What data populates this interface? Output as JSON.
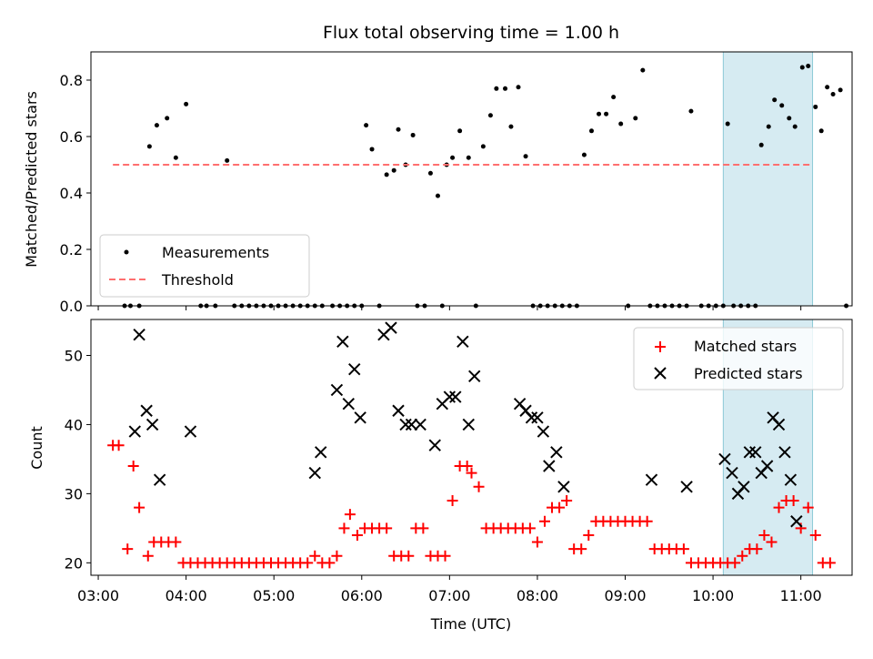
{
  "chart_data": [
    {
      "type": "scatter",
      "title": "Flux total observing time = 1.00 h",
      "xlabel": "",
      "ylabel": "Matched/Predicted stars",
      "xlim": [
        "02:55",
        "11:35"
      ],
      "ylim": [
        0,
        0.9
      ],
      "yticks": [
        "0.0",
        "0.2",
        "0.4",
        "0.6",
        "0.8"
      ],
      "grid": false,
      "legend_position": "lower-left",
      "highlight_span": {
        "x": [
          "10:07",
          "11:08"
        ],
        "color": "#add8e6"
      },
      "series": [
        {
          "name": "Measurements",
          "color": "#000000",
          "marker": "dot",
          "points": [
            [
              "03:18",
              0
            ],
            [
              "03:22",
              0
            ],
            [
              "03:28",
              0
            ],
            [
              "03:35",
              0.565
            ],
            [
              "03:40",
              0.64
            ],
            [
              "03:47",
              0.665
            ],
            [
              "03:53",
              0.525
            ],
            [
              "04:00",
              0.715
            ],
            [
              "04:10",
              0
            ],
            [
              "04:14",
              0
            ],
            [
              "04:20",
              0
            ],
            [
              "04:28",
              0.515
            ],
            [
              "04:33",
              0
            ],
            [
              "04:38",
              0
            ],
            [
              "04:43",
              0
            ],
            [
              "04:48",
              0
            ],
            [
              "04:53",
              0
            ],
            [
              "04:58",
              0
            ],
            [
              "05:03",
              0
            ],
            [
              "05:08",
              0
            ],
            [
              "05:13",
              0
            ],
            [
              "05:18",
              0
            ],
            [
              "05:23",
              0
            ],
            [
              "05:28",
              0
            ],
            [
              "05:33",
              0
            ],
            [
              "05:40",
              0
            ],
            [
              "05:45",
              0
            ],
            [
              "05:50",
              0
            ],
            [
              "05:55",
              0
            ],
            [
              "06:00",
              0
            ],
            [
              "06:03",
              0.64
            ],
            [
              "06:07",
              0.555
            ],
            [
              "06:12",
              0
            ],
            [
              "06:17",
              0.465
            ],
            [
              "06:22",
              0.48
            ],
            [
              "06:25",
              0.625
            ],
            [
              "06:30",
              0.5
            ],
            [
              "06:35",
              0.605
            ],
            [
              "06:38",
              0
            ],
            [
              "06:43",
              0
            ],
            [
              "06:47",
              0.47
            ],
            [
              "06:52",
              0.39
            ],
            [
              "06:55",
              0
            ],
            [
              "06:58",
              0.5
            ],
            [
              "07:02",
              0.525
            ],
            [
              "07:07",
              0.62
            ],
            [
              "07:13",
              0.525
            ],
            [
              "07:18",
              0
            ],
            [
              "07:23",
              0.565
            ],
            [
              "07:28",
              0.675
            ],
            [
              "07:32",
              0.77
            ],
            [
              "07:38",
              0.77
            ],
            [
              "07:42",
              0.635
            ],
            [
              "07:47",
              0.775
            ],
            [
              "07:52",
              0.53
            ],
            [
              "07:57",
              0
            ],
            [
              "08:02",
              0
            ],
            [
              "08:07",
              0
            ],
            [
              "08:12",
              0
            ],
            [
              "08:17",
              0
            ],
            [
              "08:22",
              0
            ],
            [
              "08:27",
              0
            ],
            [
              "08:32",
              0.535
            ],
            [
              "08:37",
              0.62
            ],
            [
              "08:42",
              0.68
            ],
            [
              "08:47",
              0.68
            ],
            [
              "08:52",
              0.74
            ],
            [
              "08:57",
              0.645
            ],
            [
              "09:02",
              0
            ],
            [
              "09:07",
              0.665
            ],
            [
              "09:12",
              0.835
            ],
            [
              "09:17",
              0
            ],
            [
              "09:22",
              0
            ],
            [
              "09:27",
              0
            ],
            [
              "09:32",
              0
            ],
            [
              "09:37",
              0
            ],
            [
              "09:42",
              0
            ],
            [
              "09:45",
              0.69
            ],
            [
              "09:52",
              0
            ],
            [
              "09:57",
              0
            ],
            [
              "10:02",
              0
            ],
            [
              "10:07",
              0
            ],
            [
              "10:10",
              0.645
            ],
            [
              "10:14",
              0
            ],
            [
              "10:19",
              0
            ],
            [
              "10:24",
              0
            ],
            [
              "10:29",
              0
            ],
            [
              "10:33",
              0.57
            ],
            [
              "10:38",
              0.635
            ],
            [
              "10:42",
              0.73
            ],
            [
              "10:47",
              0.71
            ],
            [
              "10:52",
              0.665
            ],
            [
              "10:56",
              0.635
            ],
            [
              "11:01",
              0.845
            ],
            [
              "11:05",
              0.85
            ],
            [
              "11:10",
              0.705
            ],
            [
              "11:14",
              0.62
            ],
            [
              "11:18",
              0.775
            ],
            [
              "11:22",
              0.75
            ],
            [
              "11:27",
              0.765
            ],
            [
              "11:31",
              0
            ]
          ]
        },
        {
          "name": "Threshold",
          "color": "#ff6f6f",
          "style": "dashed",
          "points": [
            [
              "03:10",
              0.5
            ],
            [
              "11:08",
              0.5
            ]
          ]
        }
      ]
    },
    {
      "type": "scatter",
      "title": "",
      "xlabel": "Time (UTC)",
      "ylabel": "Count",
      "xlim": [
        "02:55",
        "11:35"
      ],
      "ylim": [
        18.2,
        55.2
      ],
      "yticks": [
        "20",
        "30",
        "40",
        "50"
      ],
      "xticks": [
        "03:00",
        "04:00",
        "05:00",
        "06:00",
        "07:00",
        "08:00",
        "09:00",
        "10:00",
        "11:00"
      ],
      "grid": false,
      "legend_position": "upper-right",
      "highlight_span": {
        "x": [
          "10:07",
          "11:08"
        ],
        "color": "#add8e6"
      },
      "series": [
        {
          "name": "Matched stars",
          "color": "#ff0000",
          "marker": "plus",
          "points": [
            [
              "03:10",
              37
            ],
            [
              "03:14",
              37
            ],
            [
              "03:20",
              22
            ],
            [
              "03:24",
              34
            ],
            [
              "03:28",
              28
            ],
            [
              "03:34",
              21
            ],
            [
              "03:38",
              23
            ],
            [
              "03:43",
              23
            ],
            [
              "03:48",
              23
            ],
            [
              "03:53",
              23
            ],
            [
              "03:58",
              20
            ],
            [
              "04:03",
              20
            ],
            [
              "04:08",
              20
            ],
            [
              "04:13",
              20
            ],
            [
              "04:18",
              20
            ],
            [
              "04:23",
              20
            ],
            [
              "04:28",
              20
            ],
            [
              "04:33",
              20
            ],
            [
              "04:38",
              20
            ],
            [
              "04:43",
              20
            ],
            [
              "04:48",
              20
            ],
            [
              "04:53",
              20
            ],
            [
              "04:58",
              20
            ],
            [
              "05:03",
              20
            ],
            [
              "05:08",
              20
            ],
            [
              "05:13",
              20
            ],
            [
              "05:18",
              20
            ],
            [
              "05:23",
              20
            ],
            [
              "05:28",
              21
            ],
            [
              "05:33",
              20
            ],
            [
              "05:38",
              20
            ],
            [
              "05:43",
              21
            ],
            [
              "05:48",
              25
            ],
            [
              "05:52",
              27
            ],
            [
              "05:57",
              24
            ],
            [
              "06:02",
              25
            ],
            [
              "06:07",
              25
            ],
            [
              "06:12",
              25
            ],
            [
              "06:17",
              25
            ],
            [
              "06:22",
              21
            ],
            [
              "06:27",
              21
            ],
            [
              "06:32",
              21
            ],
            [
              "06:37",
              25
            ],
            [
              "06:42",
              25
            ],
            [
              "06:47",
              21
            ],
            [
              "06:52",
              21
            ],
            [
              "06:57",
              21
            ],
            [
              "07:02",
              29
            ],
            [
              "07:07",
              34
            ],
            [
              "07:12",
              34
            ],
            [
              "07:15",
              33
            ],
            [
              "07:20",
              31
            ],
            [
              "07:25",
              25
            ],
            [
              "07:30",
              25
            ],
            [
              "07:35",
              25
            ],
            [
              "07:40",
              25
            ],
            [
              "07:45",
              25
            ],
            [
              "07:50",
              25
            ],
            [
              "07:55",
              25
            ],
            [
              "08:00",
              23
            ],
            [
              "08:05",
              26
            ],
            [
              "08:10",
              28
            ],
            [
              "08:15",
              28
            ],
            [
              "08:20",
              29
            ],
            [
              "08:25",
              22
            ],
            [
              "08:30",
              22
            ],
            [
              "08:35",
              24
            ],
            [
              "08:40",
              26
            ],
            [
              "08:45",
              26
            ],
            [
              "08:50",
              26
            ],
            [
              "08:55",
              26
            ],
            [
              "09:00",
              26
            ],
            [
              "09:05",
              26
            ],
            [
              "09:10",
              26
            ],
            [
              "09:15",
              26
            ],
            [
              "09:20",
              22
            ],
            [
              "09:25",
              22
            ],
            [
              "09:30",
              22
            ],
            [
              "09:35",
              22
            ],
            [
              "09:40",
              22
            ],
            [
              "09:45",
              20
            ],
            [
              "09:50",
              20
            ],
            [
              "09:55",
              20
            ],
            [
              "10:00",
              20
            ],
            [
              "10:05",
              20
            ],
            [
              "10:10",
              20
            ],
            [
              "10:15",
              20
            ],
            [
              "10:20",
              21
            ],
            [
              "10:25",
              22
            ],
            [
              "10:30",
              22
            ],
            [
              "10:35",
              24
            ],
            [
              "10:40",
              23
            ],
            [
              "10:45",
              28
            ],
            [
              "10:50",
              29
            ],
            [
              "10:55",
              29
            ],
            [
              "11:00",
              25
            ],
            [
              "11:05",
              28
            ],
            [
              "11:10",
              24
            ],
            [
              "11:15",
              20
            ],
            [
              "11:20",
              20
            ]
          ]
        },
        {
          "name": "Predicted stars",
          "color": "#000000",
          "marker": "x",
          "points": [
            [
              "03:25",
              39
            ],
            [
              "03:28",
              53
            ],
            [
              "03:33",
              42
            ],
            [
              "03:37",
              40
            ],
            [
              "03:42",
              32
            ],
            [
              "04:03",
              39
            ],
            [
              "05:28",
              33
            ],
            [
              "05:32",
              36
            ],
            [
              "05:43",
              45
            ],
            [
              "05:47",
              52
            ],
            [
              "05:51",
              43
            ],
            [
              "05:55",
              48
            ],
            [
              "05:59",
              41
            ],
            [
              "06:15",
              53
            ],
            [
              "06:20",
              54
            ],
            [
              "06:25",
              42
            ],
            [
              "06:30",
              40
            ],
            [
              "06:34",
              40
            ],
            [
              "06:40",
              40
            ],
            [
              "06:50",
              37
            ],
            [
              "06:55",
              43
            ],
            [
              "07:00",
              44
            ],
            [
              "07:04",
              44
            ],
            [
              "07:09",
              52
            ],
            [
              "07:13",
              40
            ],
            [
              "07:17",
              47
            ],
            [
              "07:48",
              43
            ],
            [
              "07:52",
              42
            ],
            [
              "07:56",
              41
            ],
            [
              "08:00",
              41
            ],
            [
              "08:04",
              39
            ],
            [
              "08:08",
              34
            ],
            [
              "08:13",
              36
            ],
            [
              "08:18",
              31
            ],
            [
              "09:18",
              32
            ],
            [
              "09:42",
              31
            ],
            [
              "10:08",
              35
            ],
            [
              "10:13",
              33
            ],
            [
              "10:17",
              30
            ],
            [
              "10:21",
              31
            ],
            [
              "10:25",
              36
            ],
            [
              "10:29",
              36
            ],
            [
              "10:33",
              33
            ],
            [
              "10:37",
              34
            ],
            [
              "10:41",
              41
            ],
            [
              "10:45",
              40
            ],
            [
              "10:49",
              36
            ],
            [
              "10:53",
              32
            ],
            [
              "10:57",
              26
            ]
          ]
        }
      ]
    }
  ]
}
